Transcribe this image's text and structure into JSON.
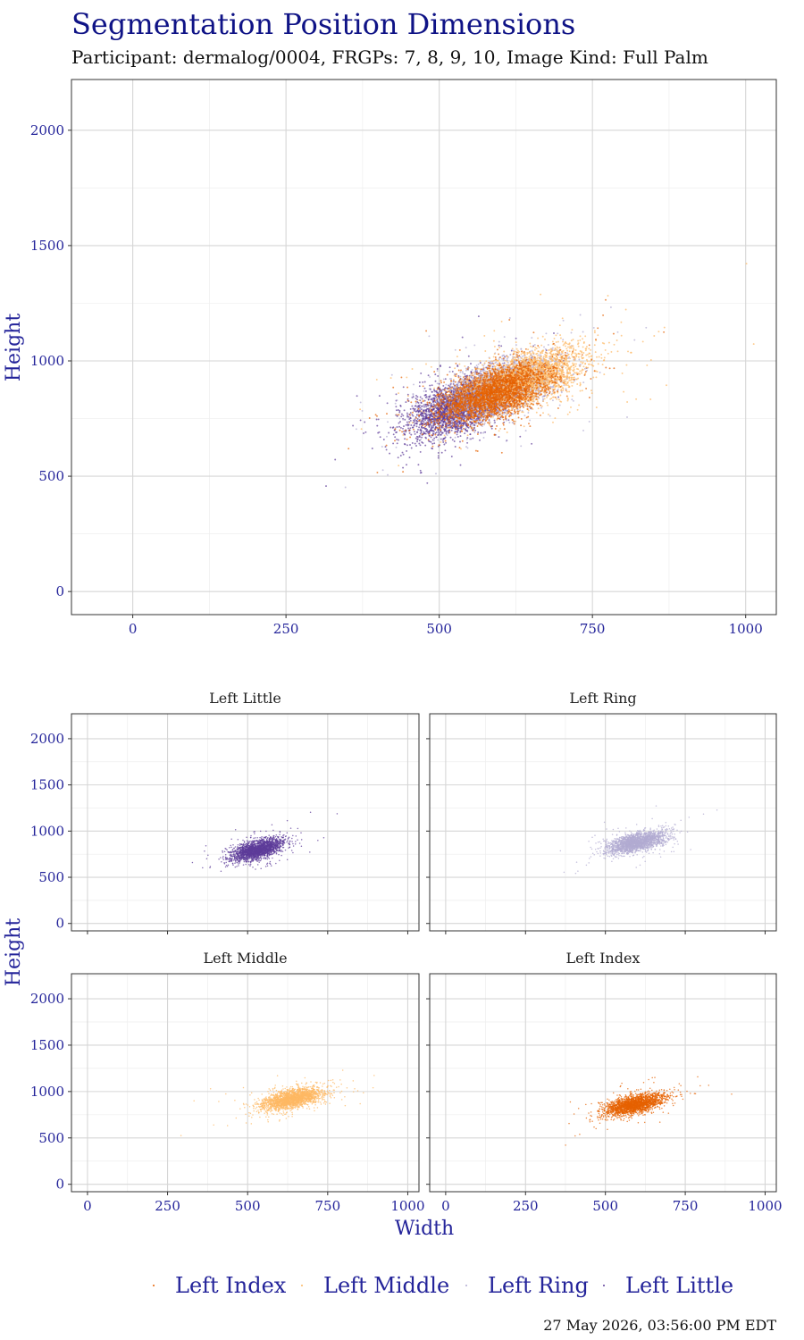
{
  "title": "Segmentation Position Dimensions",
  "subtitle": "Participant: dermalog/0004, FRGPs: 7, 8, 9, 10, Image Kind: Full Palm",
  "timestamp": "27 May 2026, 03:56:00 PM EDT",
  "legend": {
    "placement": "bottom",
    "items": [
      {
        "label": "Left Index",
        "color": "#e66101"
      },
      {
        "label": "Left Middle",
        "color": "#fdb863"
      },
      {
        "label": "Left Ring",
        "color": "#b2abd2"
      },
      {
        "label": "Left Little",
        "color": "#5e3c99"
      }
    ]
  },
  "chart_data": [
    {
      "type": "scatter",
      "name": "combined",
      "title": "",
      "xlabel": "",
      "ylabel": "Height",
      "xlim": [
        -100,
        1050
      ],
      "ylim": [
        -100,
        2220
      ],
      "x_ticks": [
        0,
        250,
        500,
        750,
        1000
      ],
      "y_ticks": [
        0,
        500,
        1000,
        1500,
        2000
      ],
      "grid": true,
      "series": [
        {
          "name": "Left Little",
          "color": "#5e3c99",
          "center": [
            530,
            800
          ],
          "sd": [
            40,
            65
          ],
          "corr": 0.55,
          "n": 2600
        },
        {
          "name": "Left Ring",
          "color": "#b2abd2",
          "center": [
            600,
            880
          ],
          "sd": [
            45,
            65
          ],
          "corr": 0.55,
          "n": 2600
        },
        {
          "name": "Left Middle",
          "color": "#fdb863",
          "center": [
            640,
            920
          ],
          "sd": [
            48,
            65
          ],
          "corr": 0.55,
          "n": 2600
        },
        {
          "name": "Left Index",
          "color": "#e66101",
          "center": [
            590,
            860
          ],
          "sd": [
            45,
            62
          ],
          "corr": 0.55,
          "n": 2600
        }
      ]
    },
    {
      "type": "scatter",
      "title": "Left Little",
      "xlabel": "Width",
      "ylabel": "Height",
      "xlim": [
        -50,
        1035
      ],
      "ylim": [
        -80,
        2270
      ],
      "x_ticks": [
        0,
        250,
        500,
        750,
        1000
      ],
      "y_ticks": [
        0,
        500,
        1000,
        1500,
        2000
      ],
      "series": [
        {
          "name": "Left Little",
          "color": "#5e3c99",
          "center": [
            530,
            800
          ],
          "sd": [
            40,
            60
          ],
          "corr": 0.55,
          "n": 2200
        }
      ]
    },
    {
      "type": "scatter",
      "title": "Left Ring",
      "xlabel": "Width",
      "ylabel": "Height",
      "xlim": [
        -50,
        1035
      ],
      "ylim": [
        -80,
        2270
      ],
      "x_ticks": [
        0,
        250,
        500,
        750,
        1000
      ],
      "y_ticks": [
        0,
        500,
        1000,
        1500,
        2000
      ],
      "series": [
        {
          "name": "Left Ring",
          "color": "#b2abd2",
          "center": [
            600,
            880
          ],
          "sd": [
            45,
            60
          ],
          "corr": 0.55,
          "n": 2200
        }
      ]
    },
    {
      "type": "scatter",
      "title": "Left Middle",
      "xlabel": "Width",
      "ylabel": "Height",
      "xlim": [
        -50,
        1035
      ],
      "ylim": [
        -80,
        2270
      ],
      "x_ticks": [
        0,
        250,
        500,
        750,
        1000
      ],
      "y_ticks": [
        0,
        500,
        1000,
        1500,
        2000
      ],
      "series": [
        {
          "name": "Left Middle",
          "color": "#fdb863",
          "center": [
            640,
            920
          ],
          "sd": [
            48,
            60
          ],
          "corr": 0.55,
          "n": 2200
        }
      ]
    },
    {
      "type": "scatter",
      "title": "Left Index",
      "xlabel": "Width",
      "ylabel": "Height",
      "xlim": [
        -50,
        1035
      ],
      "ylim": [
        -80,
        2270
      ],
      "x_ticks": [
        0,
        250,
        500,
        750,
        1000
      ],
      "y_ticks": [
        0,
        500,
        1000,
        1500,
        2000
      ],
      "series": [
        {
          "name": "Left Index",
          "color": "#e66101",
          "center": [
            590,
            860
          ],
          "sd": [
            45,
            58
          ],
          "corr": 0.55,
          "n": 2200
        }
      ]
    }
  ]
}
